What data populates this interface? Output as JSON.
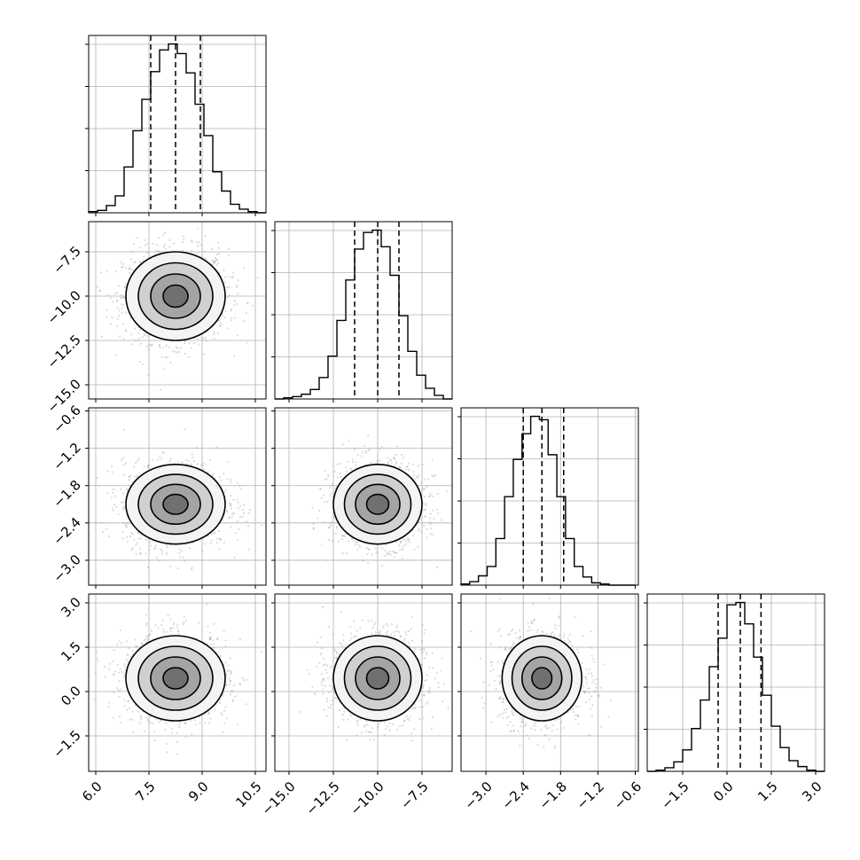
{
  "chart_data": {
    "type": "corner",
    "title": "",
    "grid": true,
    "parameters": [
      {
        "index": 0,
        "median": 8.25,
        "q16": 7.55,
        "q84": 8.95,
        "sigma": 0.7,
        "range": [
          5.8,
          10.8
        ],
        "ticks": [
          6.0,
          7.5,
          9.0,
          10.5
        ],
        "tick_labels": [
          "6.0",
          "7.5",
          "9.0",
          "10.5"
        ]
      },
      {
        "index": 1,
        "median": -10.0,
        "q16": -11.3,
        "q84": -8.8,
        "sigma": 1.25,
        "range": [
          -15.8,
          -5.8
        ],
        "ticks": [
          -15.0,
          -12.5,
          -10.0,
          -7.5
        ],
        "tick_labels": [
          "−15.0",
          "−12.5",
          "−10.0",
          "−7.5"
        ]
      },
      {
        "index": 2,
        "median": -2.1,
        "q16": -2.4,
        "q84": -1.75,
        "sigma": 0.32,
        "range": [
          -3.4,
          -0.55
        ],
        "ticks": [
          -3.0,
          -2.4,
          -1.8,
          -1.2,
          -0.6
        ],
        "tick_labels": [
          "−3.0",
          "−2.4",
          "−1.8",
          "−1.2",
          "−0.6"
        ]
      },
      {
        "index": 3,
        "median": 0.45,
        "q16": -0.3,
        "q84": 1.15,
        "sigma": 0.72,
        "range": [
          -2.7,
          3.3
        ],
        "ticks": [
          -1.5,
          0.0,
          1.5,
          3.0
        ],
        "tick_labels": [
          "−1.5",
          "0.0",
          "1.5",
          "3.0"
        ]
      }
    ],
    "histograms": [
      {
        "param": 0,
        "bin_edges": [
          5.8,
          6.05,
          6.3,
          6.55,
          6.8,
          7.05,
          7.3,
          7.55,
          7.8,
          8.05,
          8.3,
          8.55,
          8.8,
          9.05,
          9.3,
          9.55,
          9.8,
          10.05,
          10.3,
          10.55,
          10.8
        ],
        "counts": [
          1,
          2,
          6,
          14,
          38,
          68,
          94,
          117,
          135,
          140,
          132,
          116,
          90,
          64,
          34,
          18,
          7,
          3,
          1,
          0
        ]
      },
      {
        "param": 1,
        "bin_edges": [
          -15.8,
          -15.3,
          -14.8,
          -14.3,
          -13.8,
          -13.3,
          -12.8,
          -12.3,
          -11.8,
          -11.3,
          -10.8,
          -10.3,
          -9.8,
          -9.3,
          -8.8,
          -8.3,
          -7.8,
          -7.3,
          -6.8,
          -6.3,
          -5.8
        ],
        "counts": [
          0,
          1,
          2,
          4,
          8,
          18,
          36,
          66,
          100,
          126,
          140,
          142,
          128,
          104,
          70,
          40,
          20,
          9,
          3,
          0
        ]
      },
      {
        "param": 2,
        "bin_edges": [
          -3.4,
          -3.26,
          -3.12,
          -2.98,
          -2.84,
          -2.7,
          -2.56,
          -2.42,
          -2.28,
          -2.14,
          -2.0,
          -1.86,
          -1.72,
          -1.58,
          -1.44,
          -1.3,
          -1.16,
          -1.02,
          -0.88,
          -0.74,
          -0.6
        ],
        "counts": [
          1,
          3,
          8,
          16,
          40,
          76,
          108,
          130,
          145,
          142,
          112,
          76,
          40,
          16,
          7,
          2,
          1,
          0,
          0,
          0
        ]
      },
      {
        "param": 3,
        "bin_edges": [
          -2.7,
          -2.4,
          -2.1,
          -1.8,
          -1.5,
          -1.2,
          -0.9,
          -0.6,
          -0.3,
          0.0,
          0.3,
          0.6,
          0.9,
          1.2,
          1.5,
          1.8,
          2.1,
          2.4,
          2.7,
          3.0,
          3.3
        ],
        "counts": [
          0,
          1,
          3,
          8,
          18,
          36,
          60,
          88,
          112,
          140,
          142,
          124,
          96,
          64,
          38,
          20,
          9,
          4,
          1,
          0
        ]
      }
    ],
    "contour_levels_sigma": [
      0.5,
      1.0,
      1.5,
      2.0
    ],
    "samples_per_panel": 1400
  }
}
